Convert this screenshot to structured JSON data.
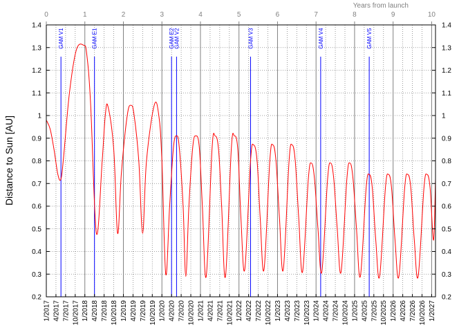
{
  "chart_data": {
    "type": "line",
    "title": "",
    "ylabel": "Distance to Sun [AU]",
    "top_axis_label": "Years from launch",
    "ylim": [
      0.2,
      1.4
    ],
    "yticks": [
      "0.2",
      "0.3",
      "0.4",
      "0.5",
      "0.6",
      "0.7",
      "0.8",
      "0.9",
      "1",
      "1.1",
      "1.2",
      "1.3",
      "1.4"
    ],
    "top_xlim": [
      0,
      10.1
    ],
    "top_ticks": [
      "0",
      "1",
      "2",
      "3",
      "4",
      "5",
      "6",
      "7",
      "8",
      "9",
      "10"
    ],
    "x_date_range": [
      "2017-01",
      "2027-02"
    ],
    "x_ticks": [
      "1/2017",
      "4/2017",
      "7/2017",
      "10/2017",
      "1/2018",
      "4/2018",
      "7/2018",
      "10/2018",
      "1/2019",
      "4/2019",
      "7/2019",
      "10/2019",
      "1/2020",
      "4/2020",
      "7/2020",
      "10/2020",
      "1/2021",
      "4/2021",
      "7/2021",
      "10/2021",
      "1/2022",
      "4/2022",
      "7/2022",
      "10/2022",
      "1/2023",
      "4/2023",
      "7/2023",
      "10/2023",
      "1/2024",
      "4/2024",
      "7/2024",
      "10/2024",
      "1/2025",
      "4/2025",
      "7/2025",
      "10/2025",
      "1/2026",
      "4/2026",
      "7/2026",
      "10/2026",
      "1/2027"
    ],
    "grid": true,
    "series": [
      {
        "color": "#ff0000",
        "x": [
          0.0,
          0.1,
          0.2,
          0.3,
          0.38,
          0.45,
          0.6,
          0.78,
          0.97,
          1.05,
          1.15,
          1.3,
          1.45,
          1.53,
          1.6,
          1.75,
          1.85,
          1.95,
          2.1,
          2.2,
          2.28,
          2.4,
          2.5,
          2.6,
          2.8,
          2.92,
          3.0,
          3.1,
          3.2,
          3.3,
          3.38,
          3.45,
          3.55,
          3.62,
          3.7,
          3.8,
          3.88,
          3.97,
          4.05,
          4.15,
          4.3,
          4.38,
          4.47,
          4.55,
          4.65,
          4.8,
          4.88,
          4.97,
          5.05,
          5.15,
          5.3,
          5.38,
          5.47,
          5.55,
          5.65,
          5.8,
          5.88,
          5.96,
          6.05,
          6.15,
          6.3,
          6.38,
          6.46,
          6.55,
          6.65,
          6.8,
          6.88,
          6.96,
          7.05,
          7.15,
          7.3,
          7.38,
          7.46,
          7.55,
          7.65,
          7.8,
          7.88,
          7.96,
          8.05,
          8.15,
          8.3,
          8.38,
          8.46,
          8.55,
          8.65,
          8.8,
          8.88,
          8.96,
          9.05,
          9.15,
          9.3,
          9.38,
          9.46,
          9.55,
          9.65,
          9.8,
          9.88,
          9.96,
          10.05,
          10.1
        ],
        "y": [
          0.98,
          0.94,
          0.85,
          0.74,
          0.72,
          0.82,
          1.1,
          1.29,
          1.31,
          1.27,
          1.05,
          0.48,
          0.8,
          1.0,
          1.04,
          0.85,
          0.48,
          0.75,
          1.0,
          1.045,
          1.0,
          0.8,
          0.48,
          0.8,
          1.045,
          1.0,
          0.8,
          0.3,
          0.6,
          0.86,
          0.91,
          0.86,
          0.6,
          0.29,
          0.6,
          0.86,
          0.91,
          0.86,
          0.6,
          0.29,
          0.85,
          0.91,
          0.85,
          0.6,
          0.29,
          0.85,
          0.91,
          0.85,
          0.55,
          0.32,
          0.8,
          0.87,
          0.8,
          0.55,
          0.32,
          0.8,
          0.87,
          0.8,
          0.55,
          0.32,
          0.8,
          0.87,
          0.8,
          0.55,
          0.31,
          0.72,
          0.79,
          0.72,
          0.5,
          0.31,
          0.72,
          0.79,
          0.72,
          0.5,
          0.31,
          0.72,
          0.79,
          0.72,
          0.5,
          0.29,
          0.68,
          0.74,
          0.68,
          0.45,
          0.29,
          0.68,
          0.74,
          0.68,
          0.45,
          0.29,
          0.68,
          0.74,
          0.68,
          0.45,
          0.29,
          0.68,
          0.74,
          0.68,
          0.45,
          0.72
        ]
      }
    ],
    "flybys": [
      {
        "label": "GAM V1",
        "year": 0.38
      },
      {
        "label": "GAM E1",
        "year": 1.25
      },
      {
        "label": "GAM E2",
        "year": 3.25
      },
      {
        "label": "GAM V2",
        "year": 3.38
      },
      {
        "label": "GAM V3",
        "year": 5.3
      },
      {
        "label": "GAM V4",
        "year": 7.12
      },
      {
        "label": "GAM V5",
        "year": 8.38
      }
    ],
    "colors": {
      "curve": "#ff0000",
      "flyby": "#0000ff",
      "grid": "#808080",
      "top_axis": "#808080"
    }
  }
}
